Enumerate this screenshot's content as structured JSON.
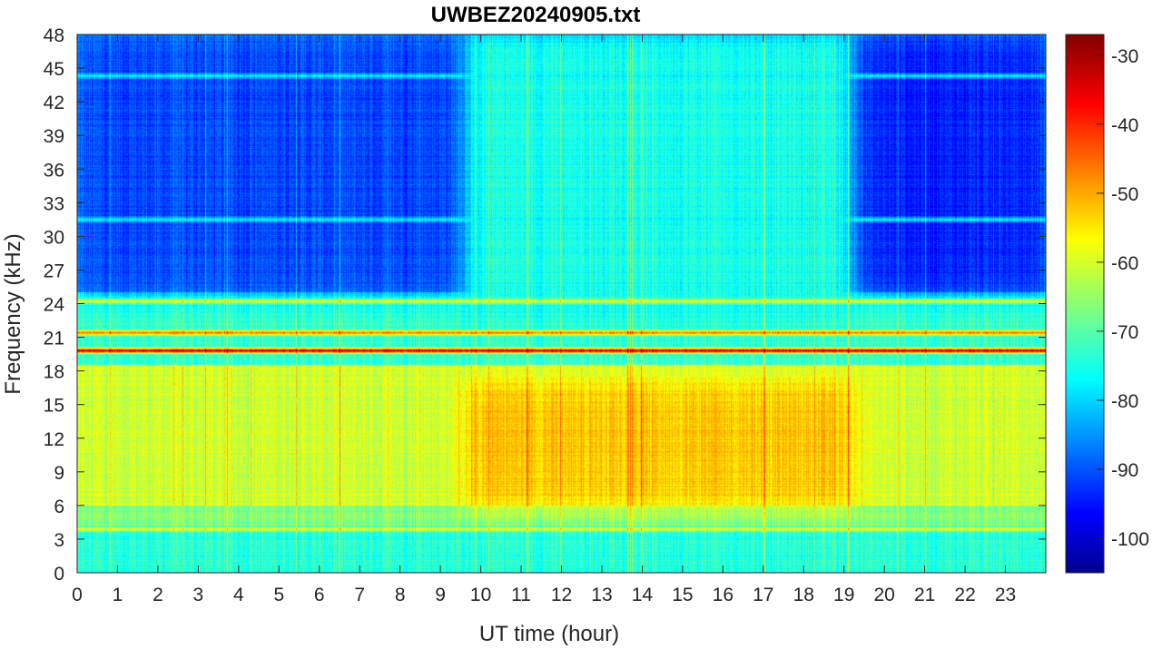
{
  "chart_data": {
    "type": "heatmap",
    "title": "UWBEZ20240905.txt",
    "xlabel": "UT time (hour)",
    "ylabel": "Frequency (kHz)",
    "xlim": [
      0,
      24
    ],
    "ylim": [
      0,
      48
    ],
    "x_ticks": [
      0,
      1,
      2,
      3,
      4,
      5,
      6,
      7,
      8,
      9,
      10,
      11,
      12,
      13,
      14,
      15,
      16,
      17,
      18,
      19,
      20,
      21,
      22,
      23
    ],
    "y_ticks": [
      0,
      3,
      6,
      9,
      12,
      15,
      18,
      21,
      24,
      27,
      30,
      33,
      36,
      39,
      42,
      45,
      48
    ],
    "colorbar": {
      "colormap": "jet",
      "range": [
        -105,
        -27
      ],
      "ticks": [
        -100,
        -90,
        -80,
        -70,
        -60,
        -50,
        -40,
        -30
      ],
      "placement": "right"
    },
    "features": [
      {
        "kind": "horizontal_line",
        "freq_khz": 19.8,
        "level_db": -30
      },
      {
        "kind": "horizontal_line",
        "freq_khz": 21.4,
        "level_db": -45
      },
      {
        "kind": "horizontal_line",
        "freq_khz": 24.2,
        "level_db": -58
      },
      {
        "kind": "horizontal_line",
        "freq_khz": 3.9,
        "level_db": -58
      },
      {
        "kind": "horizontal_line",
        "freq_khz": 44.3,
        "level_db": -75
      },
      {
        "kind": "horizontal_line",
        "freq_khz": 31.5,
        "level_db": -76
      },
      {
        "kind": "region",
        "hours": [
          9.5,
          19.3
        ],
        "freq_khz": [
          6,
          17
        ],
        "level_db": -52
      },
      {
        "kind": "region",
        "hours": [
          9.5,
          19.3
        ],
        "freq_khz": [
          22,
          48
        ],
        "level_db": -74
      },
      {
        "kind": "region",
        "hours": [
          0,
          9.5
        ],
        "freq_khz": [
          25,
          48
        ],
        "level_db": -90
      },
      {
        "kind": "region",
        "hours": [
          19.3,
          24
        ],
        "freq_khz": [
          25,
          48
        ],
        "level_db": -93
      }
    ]
  }
}
